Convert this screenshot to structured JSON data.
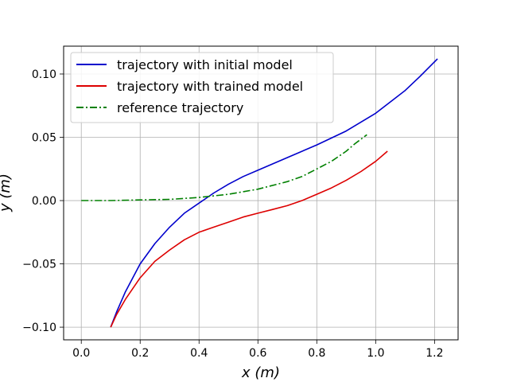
{
  "chart_data": {
    "type": "line",
    "xlabel": "x (m)",
    "ylabel": "y (m)",
    "xlim": [
      -0.06,
      1.28
    ],
    "ylim": [
      -0.11,
      0.122
    ],
    "xticks": [
      0.0,
      0.2,
      0.4,
      0.6,
      0.8,
      1.0,
      1.2
    ],
    "xtick_labels": [
      "0.0",
      "0.2",
      "0.4",
      "0.6",
      "0.8",
      "1.0",
      "1.2"
    ],
    "yticks": [
      -0.1,
      -0.05,
      0.0,
      0.05,
      0.1
    ],
    "ytick_labels": [
      "−0.10",
      "−0.05",
      "0.00",
      "0.05",
      "0.10"
    ],
    "grid": true,
    "legend_position": "top-left",
    "series": [
      {
        "name": "trajectory with initial model",
        "color": "#0000cc",
        "style": "solid",
        "x": [
          0.1,
          0.12,
          0.15,
          0.2,
          0.25,
          0.3,
          0.35,
          0.4,
          0.45,
          0.5,
          0.55,
          0.6,
          0.7,
          0.8,
          0.9,
          1.0,
          1.05,
          1.1,
          1.15,
          1.21
        ],
        "y": [
          -0.1,
          -0.088,
          -0.072,
          -0.05,
          -0.034,
          -0.021,
          -0.01,
          -0.002,
          0.006,
          0.013,
          0.019,
          0.024,
          0.034,
          0.044,
          0.055,
          0.069,
          0.078,
          0.087,
          0.098,
          0.112
        ]
      },
      {
        "name": "trajectory with trained model",
        "color": "#dd0000",
        "style": "solid",
        "x": [
          0.1,
          0.12,
          0.15,
          0.2,
          0.25,
          0.3,
          0.35,
          0.4,
          0.45,
          0.5,
          0.55,
          0.6,
          0.65,
          0.7,
          0.75,
          0.8,
          0.85,
          0.9,
          0.95,
          1.0,
          1.04
        ],
        "y": [
          -0.1,
          -0.09,
          -0.078,
          -0.061,
          -0.048,
          -0.039,
          -0.031,
          -0.025,
          -0.021,
          -0.017,
          -0.013,
          -0.01,
          -0.007,
          -0.004,
          0.0,
          0.005,
          0.01,
          0.016,
          0.023,
          0.031,
          0.039
        ]
      },
      {
        "name": "reference trajectory",
        "color": "#008000",
        "style": "dashdot",
        "x": [
          0.0,
          0.1,
          0.2,
          0.3,
          0.4,
          0.5,
          0.6,
          0.7,
          0.75,
          0.8,
          0.85,
          0.9,
          0.93,
          0.97
        ],
        "y": [
          0.0,
          0.0,
          0.0005,
          0.001,
          0.0025,
          0.005,
          0.009,
          0.015,
          0.019,
          0.025,
          0.031,
          0.039,
          0.045,
          0.052
        ]
      }
    ]
  }
}
